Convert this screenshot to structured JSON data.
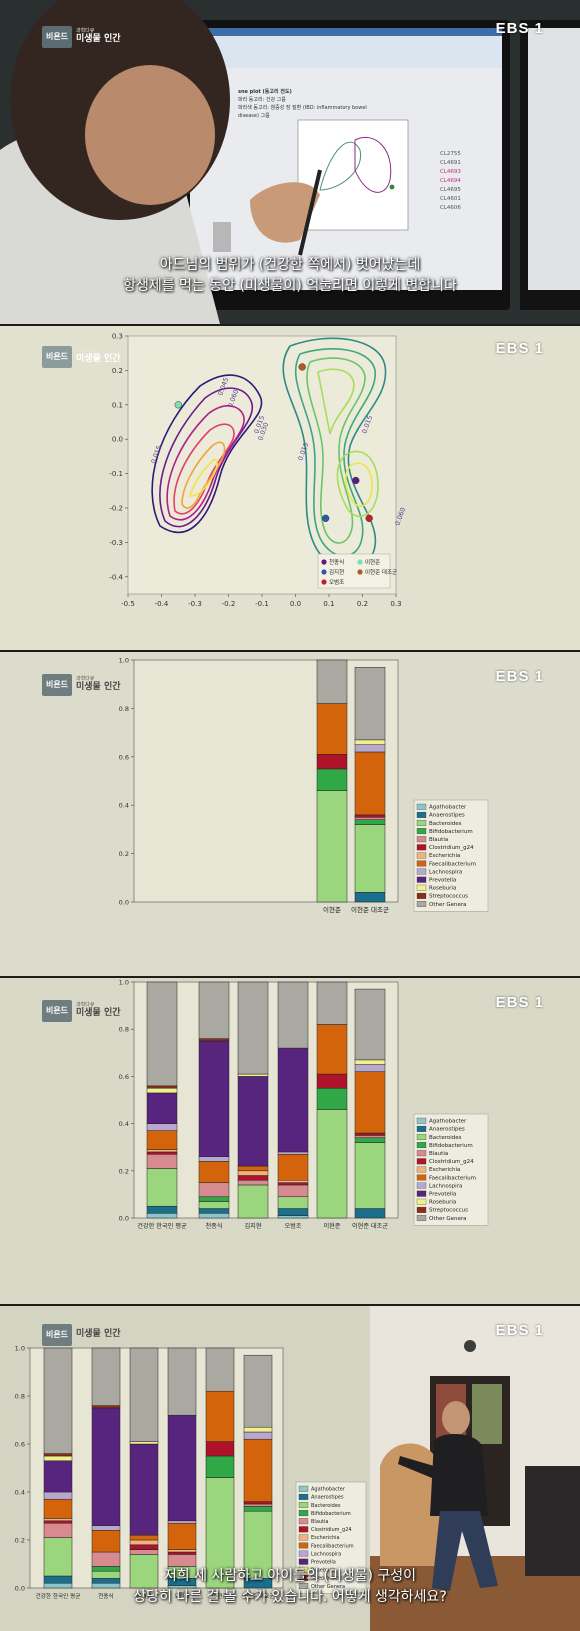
{
  "program": {
    "logo_main": "비욘드",
    "logo_sub": "과학다큐",
    "title": "미생물 인간",
    "channel": "EBS",
    "channel_num": "1"
  },
  "panel1": {
    "monitor_heading": "sne plot (동고리 전도)",
    "monitor_line1": "파라 동고리: 건강 그룹",
    "monitor_line2": "파라색 동고리: 염증성 장 질환 (IBD: inflammatory bowel disease) 그룹",
    "monitor_ids": [
      "CL2755",
      "CL4691",
      "CL4693",
      "CL4694",
      "CL4695",
      "CL4601",
      "CL4606"
    ],
    "caption_line1": "아드님의 범위가 (건강한 쪽에서) 벗어났는데",
    "caption_line2": "항생제를 먹는 동안 (미생물이) 억눌리면 이렇게 변합니다"
  },
  "panel5": {
    "caption_line1": "저희 세 사람하고 아이들의 (미생물) 구성이",
    "caption_line2": "상당히 다른 걸 볼 수가 있습니다. 어떻게 생각하세요?"
  },
  "chart_data": [
    {
      "type": "scatter",
      "title": "",
      "xlim": [
        -0.5,
        0.3
      ],
      "ylim": [
        -0.45,
        0.3
      ],
      "x_ticks": [
        "-0.5",
        "-0.4",
        "-0.3",
        "-0.2",
        "-0.1",
        "0.0",
        "0.1",
        "0.2",
        "0.3"
      ],
      "y_ticks": [
        "0.3",
        "0.2",
        "0.1",
        "0.0",
        "-0.1",
        "-0.2",
        "-0.3",
        "-0.4"
      ],
      "contour_labels": [
        "0.015",
        "0.045",
        "0.060",
        "0.015",
        "0.030",
        "0.015",
        "0.015",
        "0.060"
      ],
      "points": [
        {
          "name": "천종식",
          "x": 0.18,
          "y": -0.12,
          "color": "#5b1a8a"
        },
        {
          "name": "이현준",
          "x": -0.35,
          "y": 0.1,
          "color": "#7be0b4"
        },
        {
          "name": "김지현",
          "x": 0.09,
          "y": -0.23,
          "color": "#2d5aa6"
        },
        {
          "name": "이현준 대조군",
          "x": 0.02,
          "y": 0.21,
          "color": "#b05a2a"
        },
        {
          "name": "오범조",
          "x": 0.22,
          "y": -0.23,
          "color": "#c0202a"
        }
      ],
      "legend": [
        "천종식",
        "이현준",
        "김지현",
        "이현준 대조군",
        "오범조"
      ]
    },
    {
      "type": "bar",
      "stacked": true,
      "categories": [
        "이현준",
        "이현준 대조군"
      ],
      "ylim": [
        0,
        1.0
      ],
      "y_ticks": [
        "0.0",
        "0.2",
        "0.4",
        "0.6",
        "0.8",
        "1.0"
      ],
      "series": [
        {
          "name": "Agathobacter",
          "values": [
            0.0,
            0.0
          ]
        },
        {
          "name": "Anaerostipes",
          "values": [
            0.0,
            0.04
          ]
        },
        {
          "name": "Bacteroides",
          "values": [
            0.46,
            0.28
          ]
        },
        {
          "name": "Bifidobacterium",
          "values": [
            0.09,
            0.02
          ]
        },
        {
          "name": "Blautia",
          "values": [
            0.0,
            0.01
          ]
        },
        {
          "name": "Clostridium_g24",
          "values": [
            0.06,
            0.01
          ]
        },
        {
          "name": "Escherichia",
          "values": [
            0.0,
            0.0
          ]
        },
        {
          "name": "Faecalibacterium",
          "values": [
            0.21,
            0.26
          ]
        },
        {
          "name": "Lachnospira",
          "values": [
            0.0,
            0.03
          ]
        },
        {
          "name": "Prevotella",
          "values": [
            0.0,
            0.0
          ]
        },
        {
          "name": "Roseburia",
          "values": [
            0.0,
            0.02
          ]
        },
        {
          "name": "Streptococcus",
          "values": [
            0.0,
            0.0
          ]
        },
        {
          "name": "Other Genera",
          "values": [
            0.18,
            0.3
          ]
        }
      ]
    },
    {
      "type": "bar",
      "stacked": true,
      "categories": [
        "건강한 한국인 평균",
        "천종식",
        "김지현",
        "오범조",
        "이현준",
        "이현준 대조군"
      ],
      "ylim": [
        0,
        1.0
      ],
      "y_ticks": [
        "0.0",
        "0.2",
        "0.4",
        "0.6",
        "0.8",
        "1.0"
      ],
      "series": [
        {
          "name": "Agathobacter",
          "values": [
            0.02,
            0.02,
            0.0,
            0.01,
            0.0,
            0.0
          ]
        },
        {
          "name": "Anaerostipes",
          "values": [
            0.03,
            0.02,
            0.0,
            0.03,
            0.0,
            0.04
          ]
        },
        {
          "name": "Bacteroides",
          "values": [
            0.16,
            0.03,
            0.14,
            0.05,
            0.46,
            0.28
          ]
        },
        {
          "name": "Bifidobacterium",
          "values": [
            0.0,
            0.02,
            0.0,
            0.0,
            0.09,
            0.02
          ]
        },
        {
          "name": "Blautia",
          "values": [
            0.06,
            0.06,
            0.02,
            0.05,
            0.0,
            0.01
          ]
        },
        {
          "name": "Clostridium_g24",
          "values": [
            0.01,
            0.0,
            0.02,
            0.01,
            0.06,
            0.01
          ]
        },
        {
          "name": "Escherichia",
          "values": [
            0.01,
            0.0,
            0.02,
            0.01,
            0.0,
            0.0
          ]
        },
        {
          "name": "Faecalibacterium",
          "values": [
            0.08,
            0.09,
            0.02,
            0.11,
            0.21,
            0.26
          ]
        },
        {
          "name": "Lachnospira",
          "values": [
            0.03,
            0.02,
            0.0,
            0.01,
            0.0,
            0.03
          ]
        },
        {
          "name": "Prevotella",
          "values": [
            0.13,
            0.49,
            0.38,
            0.44,
            0.0,
            0.0
          ]
        },
        {
          "name": "Roseburia",
          "values": [
            0.02,
            0.0,
            0.01,
            0.0,
            0.0,
            0.02
          ]
        },
        {
          "name": "Streptococcus",
          "values": [
            0.01,
            0.01,
            0.0,
            0.0,
            0.0,
            0.0
          ]
        },
        {
          "name": "Other Genera",
          "values": [
            0.44,
            0.24,
            0.39,
            0.28,
            0.18,
            0.3
          ]
        }
      ]
    }
  ],
  "colors": {
    "Agathobacter": "#8ec5c8",
    "Anaerostipes": "#1a6f8c",
    "Bacteroides": "#9bd57d",
    "Bifidobacterium": "#2fa845",
    "Blautia": "#d88a91",
    "Clostridium_g24": "#b0122a",
    "Escherichia": "#f2b27e",
    "Faecalibacterium": "#d4640c",
    "Lachnospira": "#b8a8d0",
    "Prevotella": "#57247e",
    "Roseburia": "#f0f08c",
    "Streptococcus": "#8c2d14",
    "Other Genera": "#a9a9a1"
  }
}
